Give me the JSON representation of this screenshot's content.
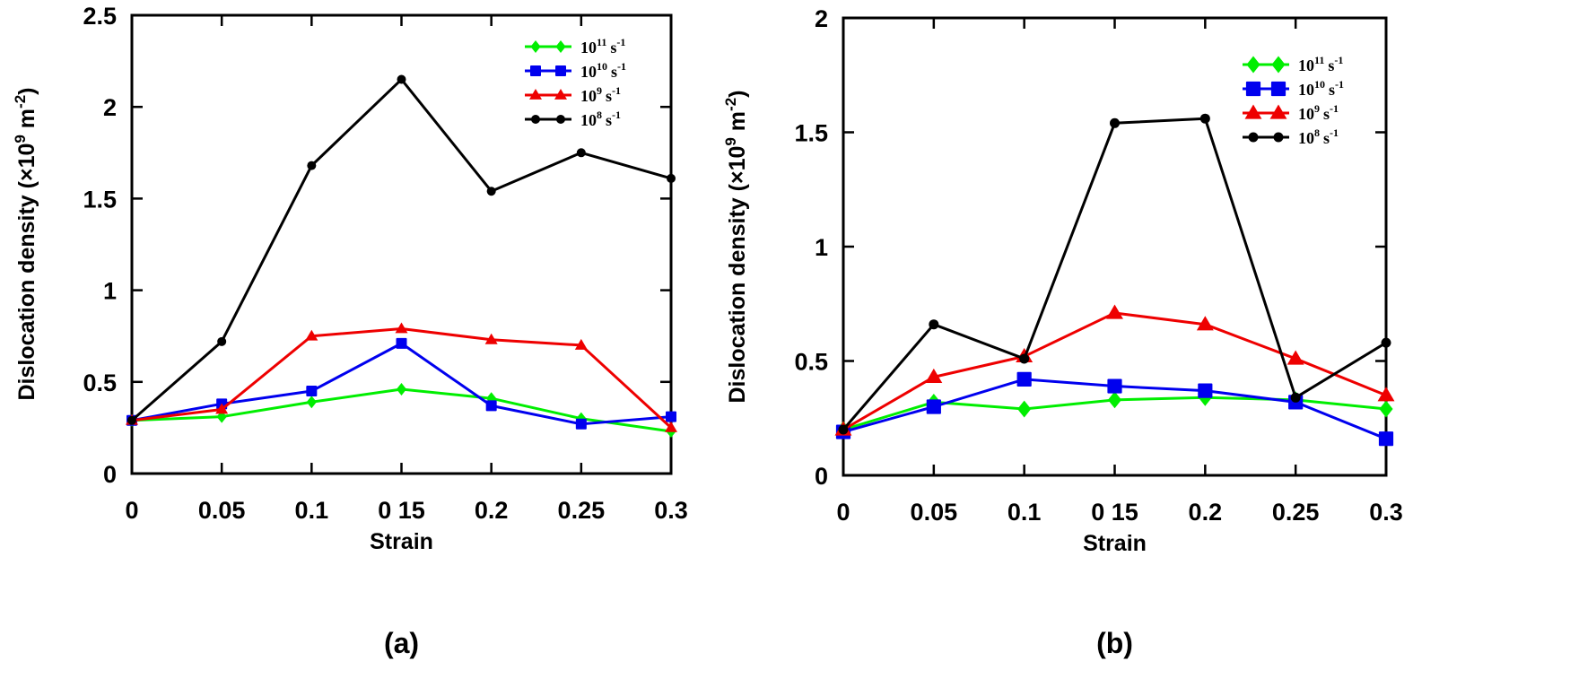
{
  "chart_data": [
    {
      "id": "a",
      "type": "line",
      "panel_label": "(a)",
      "title": "",
      "xlabel": "Strain",
      "ylabel": "Dislocation density (×10⁹ m⁻²)",
      "ylabel_parts": {
        "main": "Dislocation density (×10",
        "sup1": "9",
        "mid": " m",
        "sup2": "-2",
        "end": ")"
      },
      "x": [
        0,
        0.05,
        0.1,
        0.15,
        0.2,
        0.25,
        0.3
      ],
      "x_tick_labels": [
        "0",
        "0.05",
        "0.1",
        "0 15",
        "0.2",
        "0.25",
        "0.3"
      ],
      "y_ticks": [
        0,
        0.5,
        1,
        1.5,
        2,
        2.5
      ],
      "y_tick_labels": [
        "0",
        "0.5",
        "1",
        "1.5",
        "2",
        "2.5"
      ],
      "xlim": [
        0,
        0.3
      ],
      "ylim": [
        0,
        2.5
      ],
      "grid": false,
      "legend_position": "top-right",
      "series": [
        {
          "name": "10^11 s^-1",
          "base": "10",
          "exp": "11",
          "unit": "s",
          "unit_exp": "-1",
          "color": "#00ee00",
          "marker": "diamond",
          "values": [
            0.29,
            0.31,
            0.39,
            0.46,
            0.41,
            0.3,
            0.23
          ]
        },
        {
          "name": "10^10 s^-1",
          "base": "10",
          "exp": "10",
          "unit": "s",
          "unit_exp": "-1",
          "color": "#0000ee",
          "marker": "square",
          "values": [
            0.29,
            0.38,
            0.45,
            0.71,
            0.37,
            0.27,
            0.31
          ]
        },
        {
          "name": "10^9 s^-1",
          "base": "10",
          "exp": "9",
          "unit": "s",
          "unit_exp": "-1",
          "color": "#ee0000",
          "marker": "triangle",
          "values": [
            0.29,
            0.35,
            0.75,
            0.79,
            0.73,
            0.7,
            0.25
          ]
        },
        {
          "name": "10^8 s^-1",
          "base": "10",
          "exp": "8",
          "unit": "s",
          "unit_exp": "-1",
          "color": "#000000",
          "marker": "circle",
          "values": [
            0.29,
            0.72,
            1.68,
            2.15,
            1.54,
            1.75,
            1.61
          ]
        }
      ]
    },
    {
      "id": "b",
      "type": "line",
      "panel_label": "(b)",
      "title": "",
      "xlabel": "Strain",
      "ylabel": "Dislocation density (×10⁹ m⁻²)",
      "ylabel_parts": {
        "main": "Dislocation density (×10",
        "sup1": "9",
        "mid": " m",
        "sup2": "-2",
        "end": ")"
      },
      "x": [
        0,
        0.05,
        0.1,
        0.15,
        0.2,
        0.25,
        0.3
      ],
      "x_tick_labels": [
        "0",
        "0.05",
        "0.1",
        "0 15",
        "0.2",
        "0.25",
        "0.3"
      ],
      "y_ticks": [
        0,
        0.5,
        1,
        1.5,
        2
      ],
      "y_tick_labels": [
        "0",
        "0.5",
        "1",
        "1.5",
        "2"
      ],
      "xlim": [
        0,
        0.3
      ],
      "ylim": [
        0,
        2
      ],
      "grid": false,
      "legend_position": "top-right",
      "series": [
        {
          "name": "10^11 s^-1",
          "base": "10",
          "exp": "11",
          "unit": "s",
          "unit_exp": "-1",
          "color": "#00ee00",
          "marker": "diamond",
          "values": [
            0.2,
            0.32,
            0.29,
            0.33,
            0.34,
            0.33,
            0.29
          ]
        },
        {
          "name": "10^10 s^-1",
          "base": "10",
          "exp": "10",
          "unit": "s",
          "unit_exp": "-1",
          "color": "#0000ee",
          "marker": "square",
          "values": [
            0.19,
            0.3,
            0.42,
            0.39,
            0.37,
            0.32,
            0.16
          ]
        },
        {
          "name": "10^9 s^-1",
          "base": "10",
          "exp": "9",
          "unit": "s",
          "unit_exp": "-1",
          "color": "#ee0000",
          "marker": "triangle",
          "values": [
            0.2,
            0.43,
            0.52,
            0.71,
            0.66,
            0.51,
            0.35
          ]
        },
        {
          "name": "10^8 s^-1",
          "base": "10",
          "exp": "8",
          "unit": "s",
          "unit_exp": "-1",
          "color": "#000000",
          "marker": "circle",
          "values": [
            0.2,
            0.66,
            0.51,
            1.54,
            1.56,
            0.34,
            0.58
          ]
        }
      ]
    }
  ]
}
